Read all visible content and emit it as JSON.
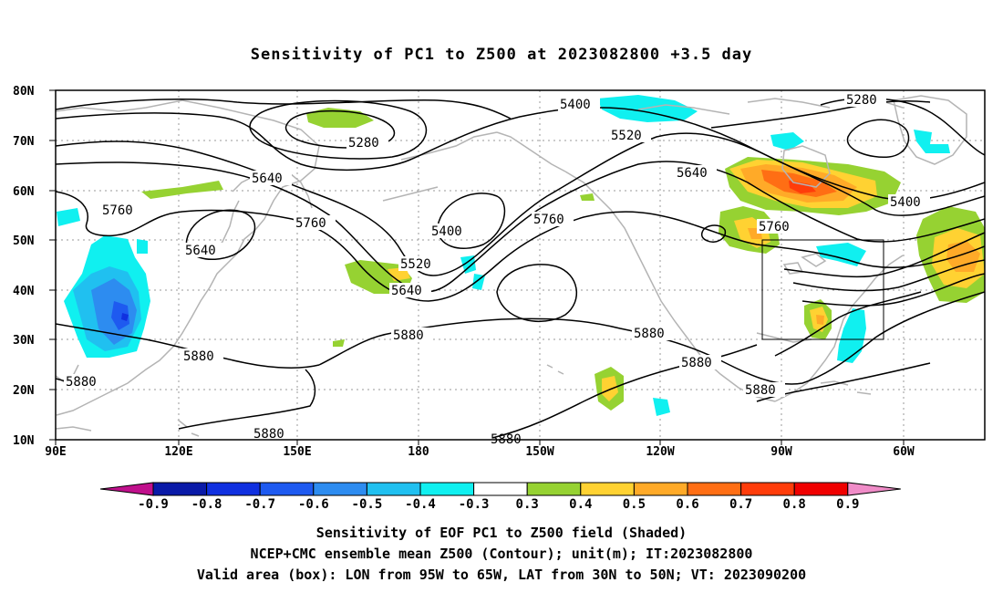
{
  "title": "Sensitivity of PC1 to Z500 at 2023082800 +3.5 day",
  "axes": {
    "lat_labels": [
      "80N",
      "70N",
      "60N",
      "50N",
      "40N",
      "30N",
      "20N",
      "10N"
    ],
    "lon_labels": [
      "90E",
      "120E",
      "150E",
      "180",
      "150W",
      "120W",
      "90W",
      "60W"
    ]
  },
  "contours": {
    "unit": "m",
    "labels": [
      "5400",
      "5280",
      "5520",
      "5640",
      "5400",
      "5760",
      "5640",
      "5760",
      "5400",
      "5640",
      "5520",
      "5760",
      "5640",
      "5880",
      "5880",
      "5880",
      "5880",
      "5880",
      "5880",
      "5880",
      "5880"
    ]
  },
  "colorbar": {
    "ticks": [
      "-0.9",
      "-0.8",
      "-0.7",
      "-0.6",
      "-0.5",
      "-0.4",
      "-0.3",
      "0.3",
      "0.4",
      "0.5",
      "0.6",
      "0.7",
      "0.8",
      "0.9"
    ],
    "colors": [
      "#c0108c",
      "#0a1aa8",
      "#1030e0",
      "#1e5af0",
      "#2d8cf0",
      "#20c0f0",
      "#10f0f0",
      "#ffffff",
      "#96d232",
      "#ffd232",
      "#ffaa28",
      "#ff6e14",
      "#ff3c0a",
      "#f00000",
      "#f08cc8"
    ]
  },
  "valid_box": {
    "lon_from": "95W",
    "lon_to": "65W",
    "lat_from": "30N",
    "lat_to": "50N"
  },
  "footer": {
    "line1": "Sensitivity of EOF PC1 to Z500 field (Shaded)",
    "line2": "NCEP+CMC ensemble mean Z500 (Contour); unit(m); IT:2023082800",
    "line3": "Valid area (box): LON from 95W to 65W, LAT from 30N to 50N; VT: 2023090200"
  }
}
